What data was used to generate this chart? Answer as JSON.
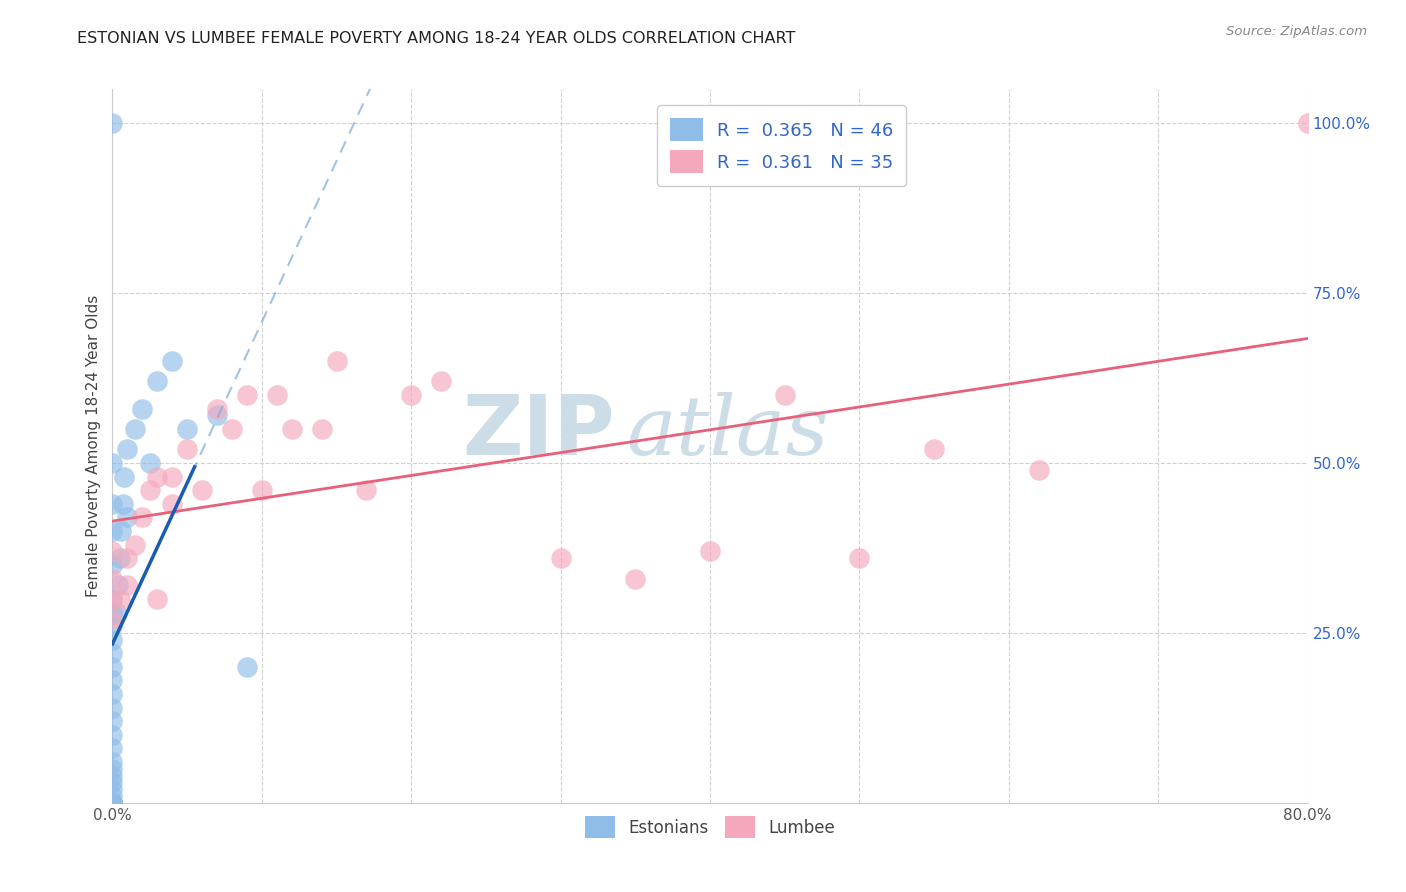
{
  "title": "ESTONIAN VS LUMBEE FEMALE POVERTY AMONG 18-24 YEAR OLDS CORRELATION CHART",
  "source": "Source: ZipAtlas.com",
  "ylabel": "Female Poverty Among 18-24 Year Olds",
  "xlim": [
    0,
    0.8
  ],
  "ylim": [
    0,
    1.05
  ],
  "legend_r_estonian": "0.365",
  "legend_n_estonian": "46",
  "legend_r_lumbee": "0.361",
  "legend_n_lumbee": "35",
  "estonian_color": "#90bce8",
  "lumbee_color": "#f5a8bc",
  "estonian_line_solid_color": "#1a5cb0",
  "estonian_line_dash_color": "#7aaad8",
  "lumbee_line_color": "#e8607a",
  "watermark_zip": "ZIP",
  "watermark_atlas": "atlas",
  "watermark_color": "#ccdde8",
  "estonian_x": [
    0.0,
    0.0,
    0.0,
    0.0,
    0.0,
    0.0,
    0.0,
    0.0,
    0.0,
    0.0,
    0.0,
    0.0,
    0.0,
    0.0,
    0.0,
    0.0,
    0.0,
    0.0,
    0.0,
    0.0,
    0.0,
    0.0,
    0.0,
    0.0,
    0.0,
    0.0,
    0.0,
    0.0,
    0.0,
    0.0,
    0.003,
    0.004,
    0.005,
    0.006,
    0.007,
    0.008,
    0.01,
    0.01,
    0.015,
    0.02,
    0.025,
    0.03,
    0.04,
    0.05,
    0.07,
    0.09
  ],
  "estonian_y": [
    0.0,
    0.0,
    0.0,
    0.0,
    0.0,
    0.0,
    0.0,
    0.01,
    0.02,
    0.03,
    0.04,
    0.05,
    0.06,
    0.08,
    0.1,
    0.12,
    0.14,
    0.16,
    0.18,
    0.2,
    0.22,
    0.24,
    0.26,
    0.28,
    0.3,
    0.35,
    0.4,
    0.44,
    0.5,
    1.0,
    0.28,
    0.32,
    0.36,
    0.4,
    0.44,
    0.48,
    0.42,
    0.52,
    0.55,
    0.58,
    0.5,
    0.62,
    0.65,
    0.55,
    0.57,
    0.2
  ],
  "lumbee_x": [
    0.0,
    0.0,
    0.0,
    0.0,
    0.005,
    0.01,
    0.01,
    0.015,
    0.02,
    0.025,
    0.03,
    0.03,
    0.04,
    0.04,
    0.05,
    0.06,
    0.07,
    0.08,
    0.09,
    0.1,
    0.11,
    0.12,
    0.14,
    0.15,
    0.17,
    0.2,
    0.22,
    0.3,
    0.35,
    0.4,
    0.45,
    0.5,
    0.55,
    0.62,
    0.8
  ],
  "lumbee_y": [
    0.27,
    0.3,
    0.33,
    0.37,
    0.3,
    0.32,
    0.36,
    0.38,
    0.42,
    0.46,
    0.3,
    0.48,
    0.44,
    0.48,
    0.52,
    0.46,
    0.58,
    0.55,
    0.6,
    0.46,
    0.6,
    0.55,
    0.55,
    0.65,
    0.46,
    0.6,
    0.62,
    0.36,
    0.33,
    0.37,
    0.6,
    0.36,
    0.52,
    0.49,
    1.0
  ]
}
